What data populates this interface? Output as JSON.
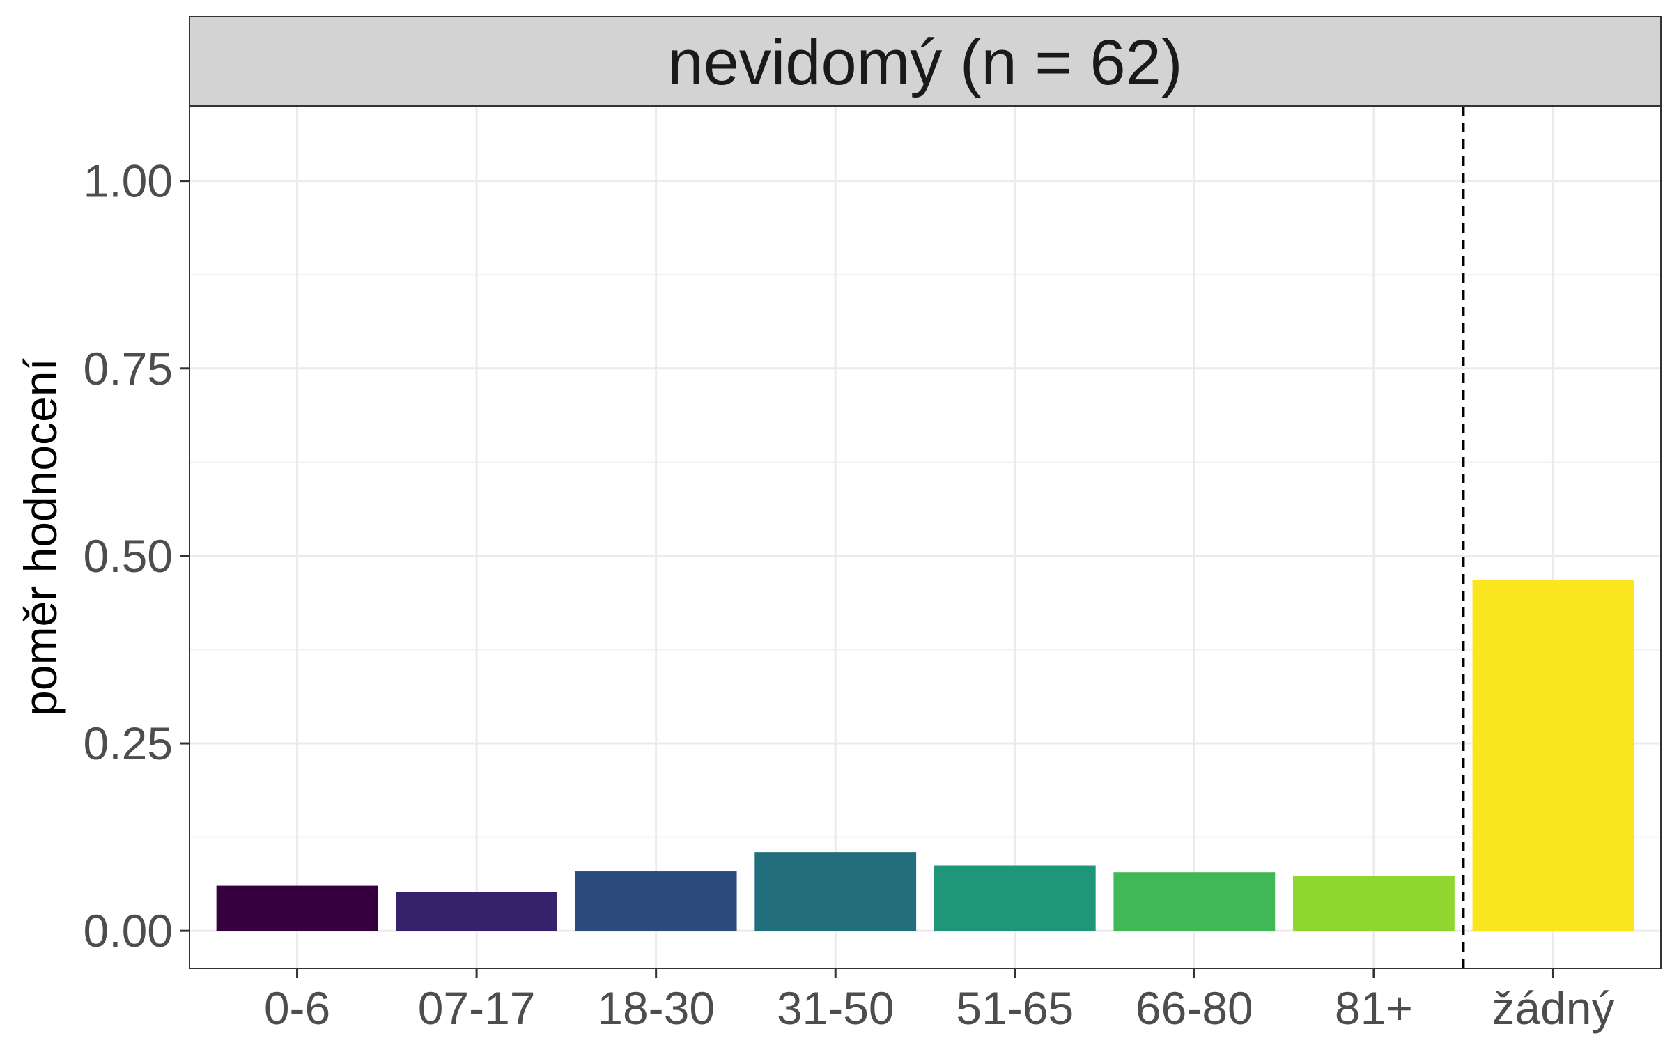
{
  "chart_data": {
    "type": "bar",
    "facet_title": "nevidomý (n = 62)",
    "ylabel": "poměr hodnocení",
    "xlabel": "",
    "categories": [
      "0-6",
      "07-17",
      "18-30",
      "31-50",
      "51-65",
      "66-80",
      "81+",
      "žádný"
    ],
    "values": [
      0.06,
      0.052,
      0.08,
      0.105,
      0.087,
      0.078,
      0.073,
      0.468
    ],
    "colors": [
      "#35003d",
      "#35226a",
      "#2a4b7c",
      "#226e7c",
      "#1f967a",
      "#41b858",
      "#8fd630",
      "#fae51f"
    ],
    "ylim": [
      -0.05,
      1.1
    ],
    "yticks": [
      0,
      0.25,
      0.5,
      0.75,
      1.0
    ],
    "ytick_labels": [
      "0.00",
      "0.25",
      "0.50",
      "0.75",
      "1.00"
    ],
    "separator_after_index": 6,
    "grid": true,
    "legend": "none",
    "theme": {
      "strip_fill": "#d3d3d3",
      "panel_border": "#333333",
      "grid_major": "#ebebeb",
      "grid_minor": "#f2f2f2",
      "separator_color": "#000000"
    }
  }
}
